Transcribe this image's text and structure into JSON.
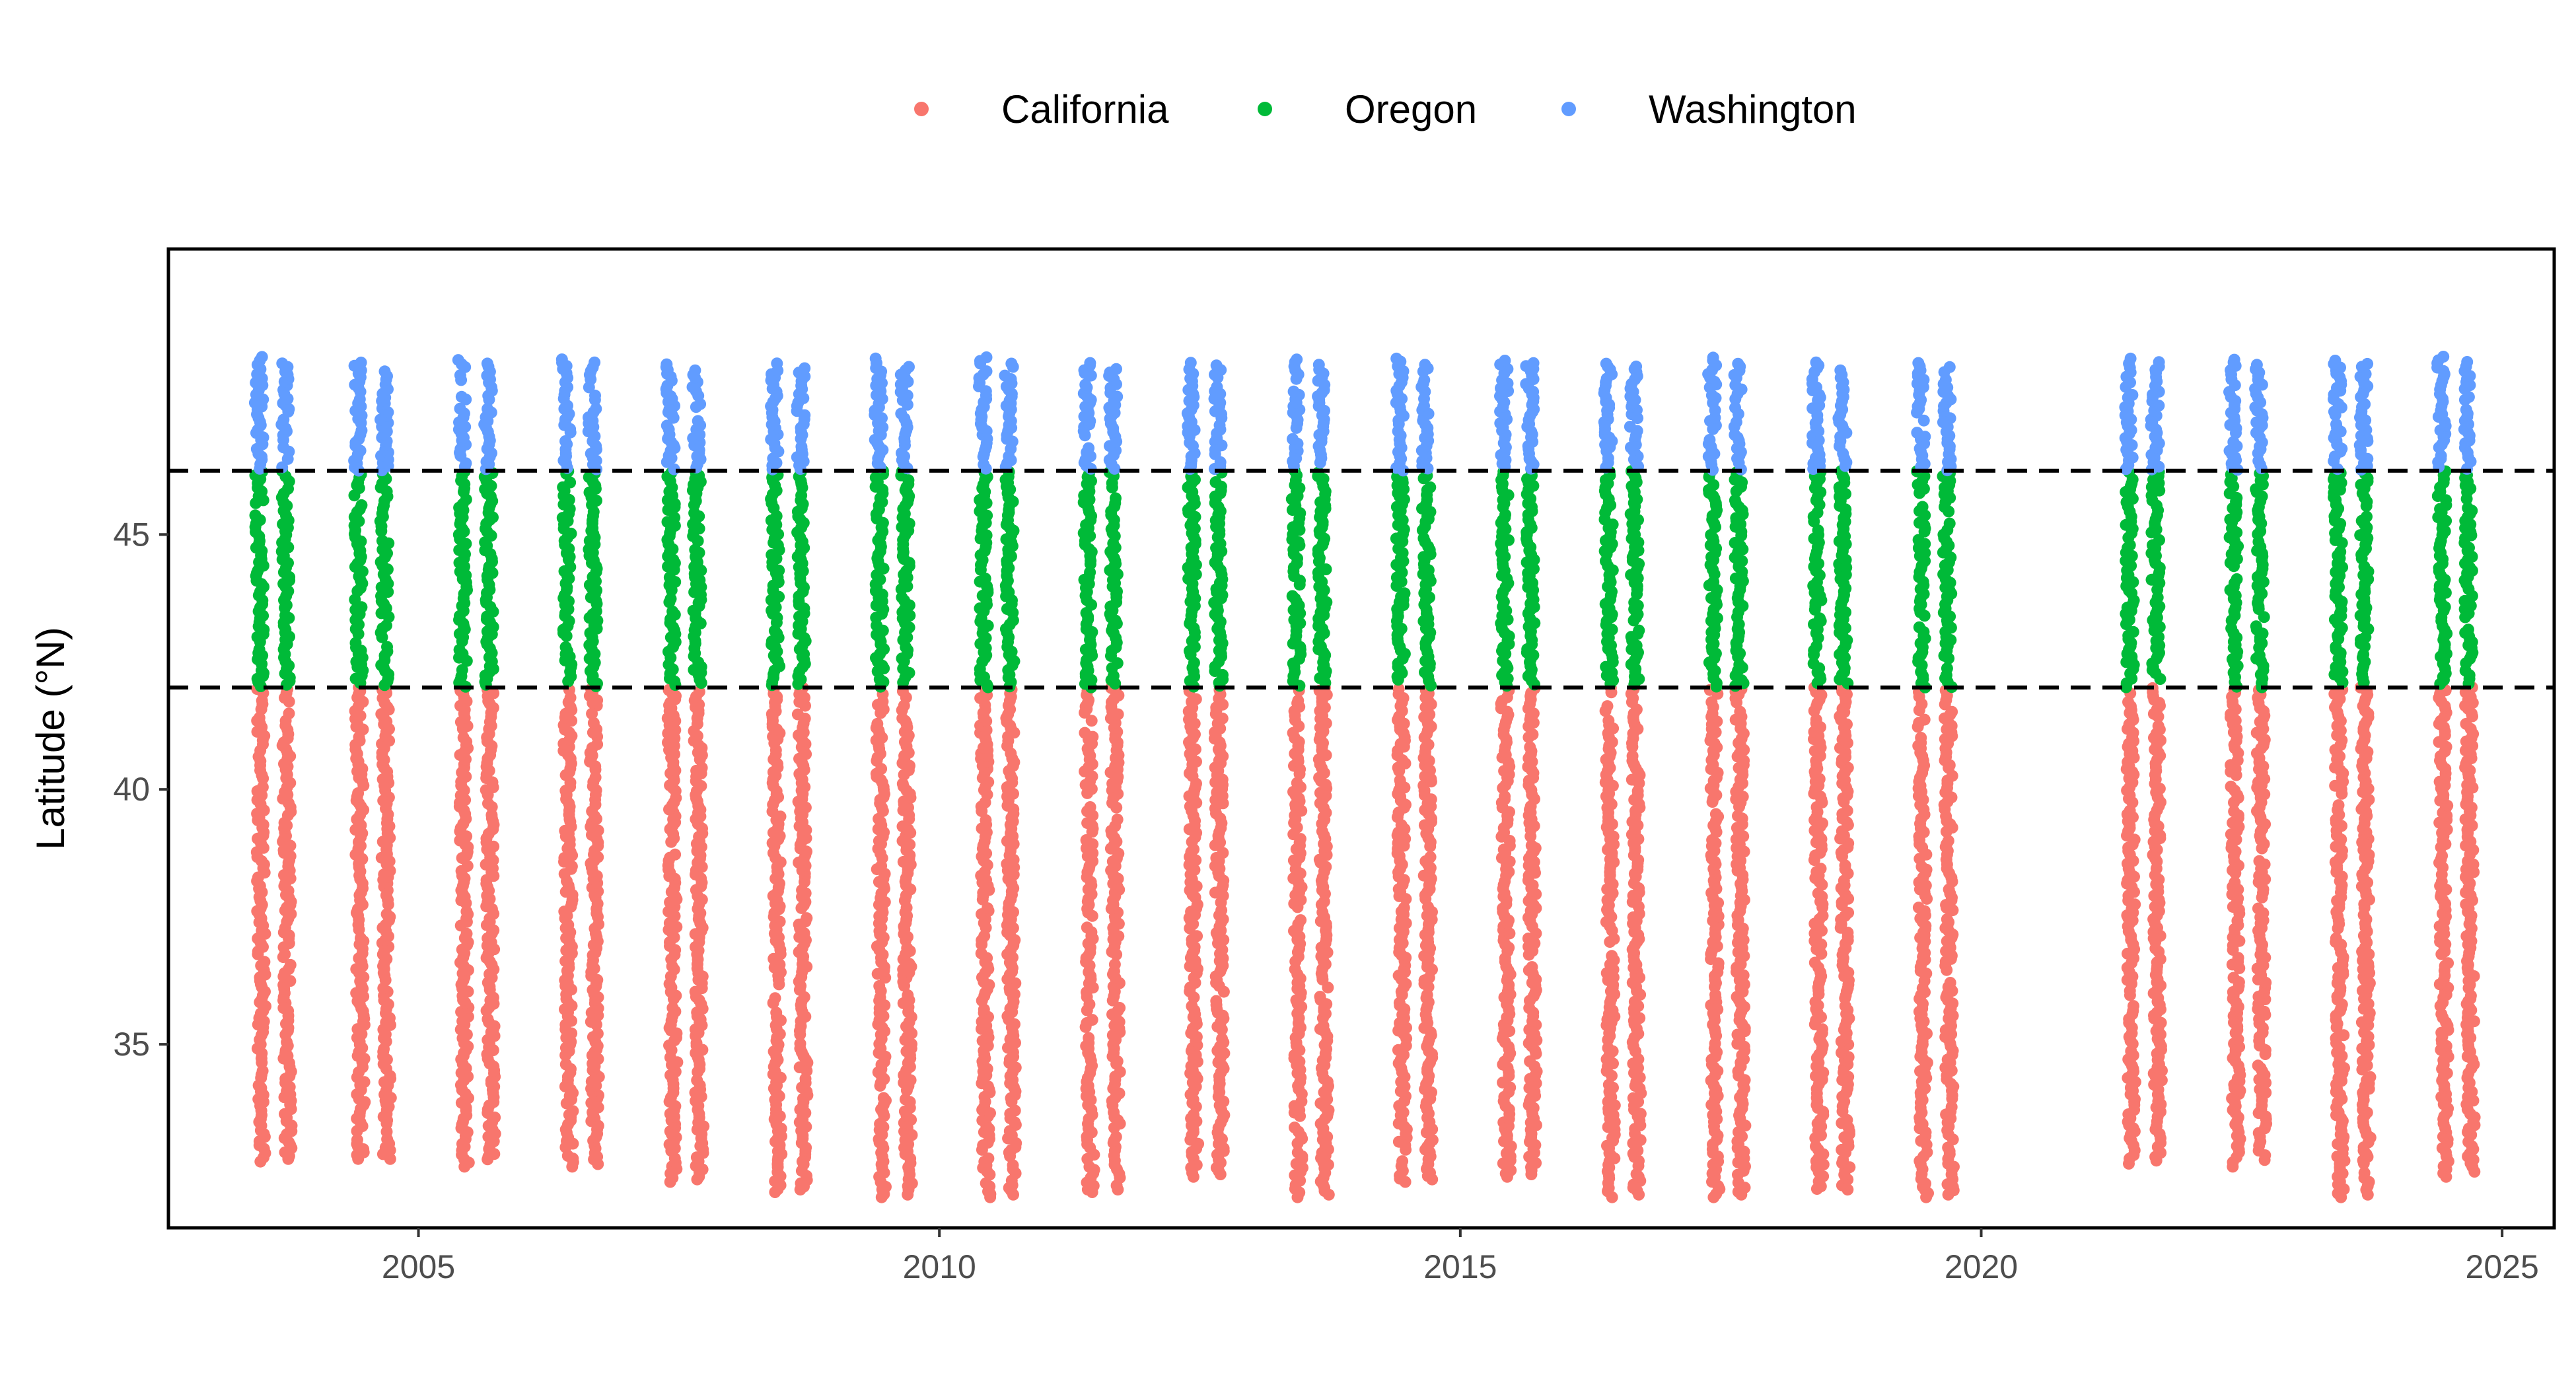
{
  "chart_data": {
    "type": "scatter",
    "title": "",
    "xlabel": "",
    "ylabel": "Latitude (°N)",
    "xlim": [
      2002.6,
      2025.5
    ],
    "ylim": [
      31.4,
      50.6
    ],
    "x_ticks": [
      2005,
      2010,
      2015,
      2020,
      2025
    ],
    "x_tick_labels": [
      "2005",
      "2010",
      "2015",
      "2020",
      "2025"
    ],
    "y_ticks": [
      35,
      40,
      45
    ],
    "y_tick_labels": [
      "35",
      "40",
      "45"
    ],
    "grid": false,
    "legend_position": "top",
    "reference_lines": [
      {
        "y": 42.0,
        "style": "dashed",
        "color": "#000000"
      },
      {
        "y": 46.25,
        "style": "dashed",
        "color": "#000000"
      }
    ],
    "series": [
      {
        "name": "California",
        "color": "#F8766D",
        "lat_range": [
          32.0,
          42.0
        ]
      },
      {
        "name": "Oregon",
        "color": "#00BA38",
        "lat_range": [
          42.0,
          46.25
        ]
      },
      {
        "name": "Washington",
        "color": "#619CFF",
        "lat_range": [
          46.25,
          48.5
        ]
      }
    ],
    "surveys": [
      {
        "year": 2003,
        "x": [
          2003.5,
          2003.75
        ],
        "lat_min": 32.7,
        "lat_max": 48.5
      },
      {
        "year": 2004,
        "x": [
          2004.45,
          2004.7
        ],
        "lat_min": 32.7,
        "lat_max": 48.4
      },
      {
        "year": 2005,
        "x": [
          2005.45,
          2005.7
        ],
        "lat_min": 32.6,
        "lat_max": 48.5
      },
      {
        "year": 2006,
        "x": [
          2006.45,
          2006.7
        ],
        "lat_min": 32.6,
        "lat_max": 48.5
      },
      {
        "year": 2007,
        "x": [
          2007.45,
          2007.7
        ],
        "lat_min": 32.3,
        "lat_max": 48.4
      },
      {
        "year": 2008,
        "x": [
          2008.45,
          2008.7
        ],
        "lat_min": 32.1,
        "lat_max": 48.4
      },
      {
        "year": 2009,
        "x": [
          2009.45,
          2009.7
        ],
        "lat_min": 32.0,
        "lat_max": 48.5
      },
      {
        "year": 2010,
        "x": [
          2010.45,
          2010.7
        ],
        "lat_min": 32.0,
        "lat_max": 48.5
      },
      {
        "year": 2011,
        "x": [
          2011.45,
          2011.7
        ],
        "lat_min": 32.1,
        "lat_max": 48.4
      },
      {
        "year": 2012,
        "x": [
          2012.45,
          2012.7
        ],
        "lat_min": 32.4,
        "lat_max": 48.5
      },
      {
        "year": 2013,
        "x": [
          2013.45,
          2013.7
        ],
        "lat_min": 32.0,
        "lat_max": 48.5
      },
      {
        "year": 2014,
        "x": [
          2014.45,
          2014.7
        ],
        "lat_min": 32.3,
        "lat_max": 48.5
      },
      {
        "year": 2015,
        "x": [
          2015.45,
          2015.7
        ],
        "lat_min": 32.4,
        "lat_max": 48.5
      },
      {
        "year": 2016,
        "x": [
          2016.45,
          2016.7
        ],
        "lat_min": 32.0,
        "lat_max": 48.4
      },
      {
        "year": 2017,
        "x": [
          2017.45,
          2017.7
        ],
        "lat_min": 32.0,
        "lat_max": 48.5
      },
      {
        "year": 2018,
        "x": [
          2018.45,
          2018.7
        ],
        "lat_min": 32.1,
        "lat_max": 48.4
      },
      {
        "year": 2019,
        "x": [
          2019.45,
          2019.7
        ],
        "lat_min": 32.0,
        "lat_max": 48.4
      },
      {
        "year": 2021,
        "x": [
          2021.45,
          2021.7
        ],
        "lat_min": 32.6,
        "lat_max": 48.5
      },
      {
        "year": 2022,
        "x": [
          2022.45,
          2022.7
        ],
        "lat_min": 32.6,
        "lat_max": 48.5
      },
      {
        "year": 2023,
        "x": [
          2023.45,
          2023.7
        ],
        "lat_min": 32.0,
        "lat_max": 48.5
      },
      {
        "year": 2024,
        "x": [
          2024.45,
          2024.7
        ],
        "lat_min": 32.4,
        "lat_max": 48.5
      }
    ]
  }
}
